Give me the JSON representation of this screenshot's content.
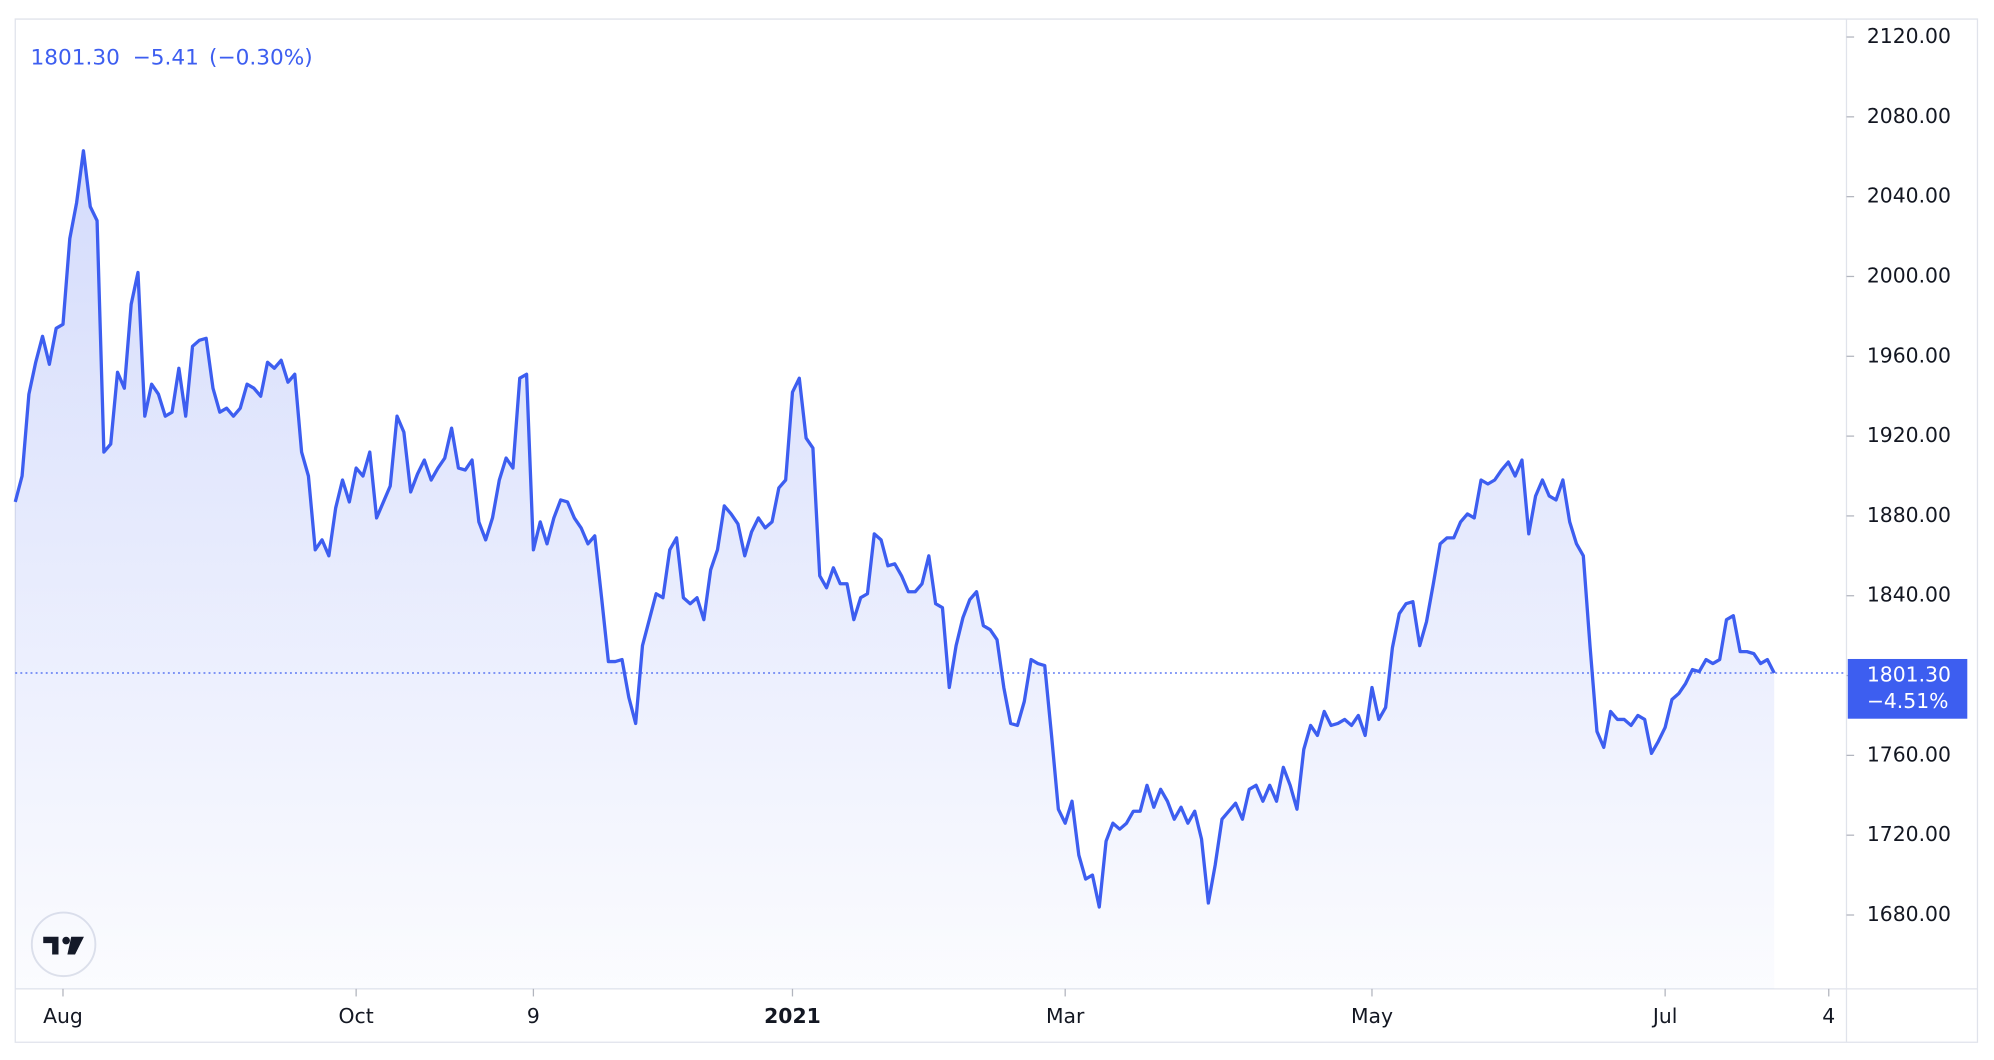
{
  "chart_data": {
    "type": "line",
    "legend": {
      "price": "1801.30",
      "change": "−5.41",
      "change_pct": "(−0.30%)"
    },
    "price_label": "1801.30",
    "price_change": "−4.51%",
    "color": "#3d5ef0",
    "categories": [
      null,
      null,
      null,
      null,
      null,
      null,
      null,
      "Aug",
      null,
      null,
      null,
      null,
      null,
      null,
      null,
      null,
      null,
      null,
      null,
      null,
      null,
      null,
      null,
      null,
      null,
      null,
      null,
      null,
      null,
      null,
      null,
      null,
      null,
      null,
      null,
      null,
      null,
      null,
      null,
      null,
      null,
      null,
      null,
      null,
      null,
      null,
      null,
      null,
      null,
      null,
      "Oct",
      null,
      null,
      null,
      null,
      null,
      null,
      null,
      null,
      null,
      null,
      null,
      null,
      null,
      null,
      null,
      null,
      null,
      null,
      null,
      null,
      null,
      null,
      null,
      null,
      null,
      "9",
      null,
      null,
      null,
      null,
      null,
      null,
      null,
      null,
      null,
      null,
      null,
      null,
      null,
      null,
      null,
      null,
      null,
      null,
      null,
      null,
      null,
      null,
      null,
      null,
      null,
      null,
      null,
      null,
      null,
      null,
      null,
      null,
      null,
      null,
      null,
      null,
      null,
      "2021",
      null,
      null,
      null,
      null,
      null,
      null,
      null,
      null,
      null,
      null,
      null,
      null,
      null,
      null,
      null,
      null,
      null,
      null,
      null,
      null,
      null,
      null,
      null,
      null,
      null,
      null,
      null,
      null,
      null,
      null,
      null,
      null,
      null,
      null,
      null,
      null,
      null,
      null,
      null,
      "Mar",
      null,
      null,
      null,
      null,
      null,
      null,
      null,
      null,
      null,
      null,
      null,
      null,
      null,
      null,
      null,
      null,
      null,
      null,
      null,
      null,
      null,
      null,
      null,
      null,
      null,
      null,
      null,
      null,
      null,
      null,
      null,
      null,
      null,
      null,
      null,
      null,
      null,
      null,
      null,
      null,
      null,
      null,
      null,
      null,
      "May",
      null,
      null,
      null,
      null,
      null,
      null,
      null,
      null,
      null,
      null,
      null,
      null,
      null,
      null,
      null,
      null,
      null,
      null,
      null,
      null,
      null,
      null,
      null,
      null,
      null,
      null,
      null,
      null,
      null,
      null,
      null,
      null,
      null,
      null,
      null,
      null,
      null,
      null,
      null,
      null,
      null,
      null,
      "Jul",
      null,
      null,
      null,
      null,
      null,
      null,
      null,
      null,
      null,
      null,
      null,
      null,
      null,
      null,
      null,
      null,
      null,
      null,
      null,
      null,
      null,
      null,
      null,
      "4"
    ],
    "values": [
      1887,
      1900,
      1941,
      1957,
      1970,
      1956,
      1974,
      1976,
      2019,
      2037,
      2063,
      2035,
      2028,
      1912,
      1916,
      1952,
      1944,
      1986,
      2002,
      1930,
      1946,
      1941,
      1930,
      1932,
      1954,
      1930,
      1965,
      1968,
      1969,
      1944,
      1932,
      1934,
      1930,
      1934,
      1946,
      1944,
      1940,
      1957,
      1954,
      1958,
      1947,
      1951,
      1912,
      1900,
      1863,
      1868,
      1860,
      1884,
      1898,
      1887,
      1904,
      1900,
      1912,
      1879,
      1887,
      1895,
      1930,
      1922,
      1892,
      1901,
      1908,
      1898,
      1904,
      1909,
      1924,
      1904,
      1903,
      1908,
      1877,
      1868,
      1879,
      1898,
      1909,
      1904,
      1949,
      1951,
      1863,
      1877,
      1866,
      1879,
      1888,
      1887,
      1879,
      1874,
      1866,
      1870,
      1839,
      1807,
      1807,
      1808,
      1789,
      1776,
      1815,
      1828,
      1841,
      1839,
      1863,
      1869,
      1839,
      1836,
      1839,
      1828,
      1853,
      1863,
      1885,
      1881,
      1876,
      1860,
      1872,
      1879,
      1874,
      1877,
      1894,
      1898,
      1942,
      1949,
      1919,
      1914,
      1850,
      1844,
      1854,
      1846,
      1846,
      1828,
      1839,
      1841,
      1871,
      1868,
      1855,
      1856,
      1850,
      1842,
      1842,
      1846,
      1860,
      1836,
      1834,
      1794,
      1815,
      1829,
      1838,
      1842,
      1825,
      1823,
      1818,
      1794,
      1776,
      1775,
      1787,
      1808,
      1806,
      1805,
      1770,
      1733,
      1726,
      1737,
      1710,
      1698,
      1700,
      1684,
      1717,
      1726,
      1723,
      1726,
      1732,
      1732,
      1745,
      1734,
      1743,
      1737,
      1728,
      1734,
      1726,
      1732,
      1718,
      1686,
      1705,
      1728,
      1732,
      1736,
      1728,
      1743,
      1745,
      1737,
      1745,
      1737,
      1754,
      1745,
      1733,
      1763,
      1775,
      1770,
      1782,
      1775,
      1776,
      1778,
      1775,
      1780,
      1770,
      1794,
      1778,
      1784,
      1814,
      1831,
      1836,
      1837,
      1815,
      1827,
      1846,
      1866,
      1869,
      1869,
      1877,
      1881,
      1879,
      1898,
      1896,
      1898,
      1903,
      1907,
      1900,
      1908,
      1871,
      1890,
      1898,
      1890,
      1888,
      1898,
      1877,
      1866,
      1860,
      1814,
      1772,
      1764,
      1782,
      1778,
      1778,
      1775,
      1780,
      1778,
      1761,
      1767,
      1774,
      1788,
      1791,
      1796,
      1803,
      1802,
      1808,
      1806,
      1808,
      1828,
      1830,
      1812,
      1812,
      1811,
      1806,
      1808,
      1801.3,
      null,
      null,
      null,
      null,
      null,
      null,
      null,
      null
    ],
    "ylim": [
      1643,
      2129
    ],
    "yticks": [
      {
        "value": 1680,
        "label": "1680.00"
      },
      {
        "value": 1720,
        "label": "1720.00"
      },
      {
        "value": 1760,
        "label": "1760.00"
      },
      {
        "value": 1800,
        "label": "1800.00"
      },
      {
        "value": 1840,
        "label": "1840.00"
      },
      {
        "value": 1880,
        "label": "1880.00"
      },
      {
        "value": 1920,
        "label": "1920.00"
      },
      {
        "value": 1960,
        "label": "1960.00"
      },
      {
        "value": 2000,
        "label": "2000.00"
      },
      {
        "value": 2040,
        "label": "2040.00"
      },
      {
        "value": 2080,
        "label": "2080.00"
      },
      {
        "value": 2120,
        "label": "2120.00"
      }
    ],
    "grid": false
  }
}
